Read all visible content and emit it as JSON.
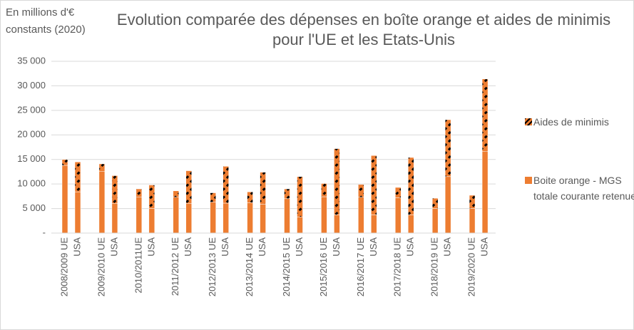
{
  "chart_data": {
    "type": "bar",
    "stacked": true,
    "title": "Evolution comparée des dépenses en boîte orange et aides de minimis pour l'UE et les Etats-Unis",
    "y_label": "En millions d'€ constants (2020)",
    "categories": [
      "2008/2009 UE",
      "USA",
      "2009/2010 UE",
      "USA",
      "2010/2011UE",
      "USA",
      "2011/2012 UE",
      "USA",
      "2012/2013 UE",
      "USA",
      "2013/2014 UE",
      "USA",
      "2014/2015 UE",
      "USA",
      "2015/2016 UE",
      "USA",
      "2016/2017 UE",
      "USA",
      "2017/2018 UE",
      "USA",
      "2018/2019 UE",
      "USA",
      "2019/2020 UE",
      "USA"
    ],
    "series": [
      {
        "name": "Boite orange - MGS totale courante retenue",
        "color": "#ED7D31",
        "hatch": false,
        "values": [
          13800,
          8400,
          12600,
          6000,
          7300,
          5000,
          7300,
          6000,
          6300,
          6100,
          6200,
          5900,
          7000,
          3300,
          7400,
          3700,
          7300,
          3700,
          7200,
          3700,
          5000,
          11500,
          5000,
          16600
        ]
      },
      {
        "name": "Aides de minimis",
        "color": "#ED7D31",
        "hatch": true,
        "values": [
          1200,
          6100,
          1500,
          5700,
          1700,
          4800,
          1300,
          6700,
          1900,
          7500,
          2200,
          6500,
          2000,
          8200,
          2700,
          13500,
          2600,
          12100,
          2100,
          11700,
          2100,
          11600,
          2700,
          14800
        ]
      }
    ],
    "ylim": [
      0,
      35000
    ],
    "yticks": [
      {
        "value": 0,
        "label": "-"
      },
      {
        "value": 5000,
        "label": "5 000"
      },
      {
        "value": 10000,
        "label": "10 000"
      },
      {
        "value": 15000,
        "label": "15 000"
      },
      {
        "value": 20000,
        "label": "20 000"
      },
      {
        "value": 25000,
        "label": "25 000"
      },
      {
        "value": 30000,
        "label": "30 000"
      },
      {
        "value": 35000,
        "label": "35 000"
      }
    ],
    "grid": true,
    "legend": "right"
  }
}
